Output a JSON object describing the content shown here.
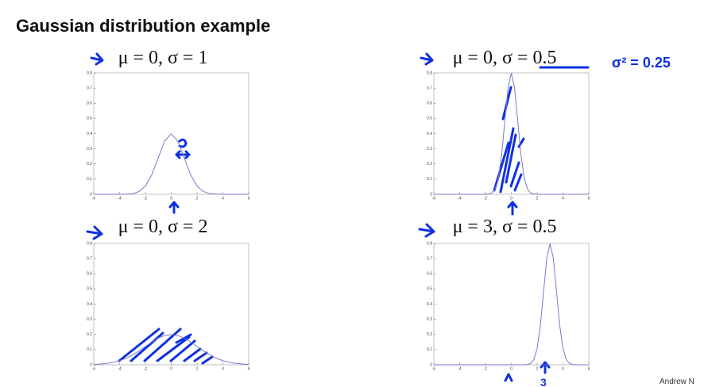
{
  "title": "Gaussian distribution example",
  "footer": "Andrew N",
  "chart_data": [
    {
      "type": "line",
      "title": "μ = 0, σ = 1",
      "x": [
        -6,
        -5.5,
        -5,
        -4.5,
        -4,
        -3.5,
        -3,
        -2.5,
        -2,
        -1.5,
        -1,
        -0.5,
        0,
        0.5,
        1,
        1.5,
        2,
        2.5,
        3,
        3.5,
        4,
        4.5,
        5,
        5.5,
        6
      ],
      "values": [
        0,
        0,
        0,
        0,
        0,
        0.001,
        0.004,
        0.018,
        0.054,
        0.13,
        0.242,
        0.352,
        0.399,
        0.352,
        0.242,
        0.13,
        0.054,
        0.018,
        0.004,
        0.001,
        0,
        0,
        0,
        0,
        0
      ],
      "color": "#7a78cc",
      "xlim": [
        -6,
        6
      ],
      "xticks": [
        -6,
        -4,
        -2,
        0,
        2,
        4,
        6
      ],
      "ylim": [
        0,
        0.8
      ],
      "yticks": [
        0,
        0.1,
        0.2,
        0.3,
        0.4,
        0.5,
        0.6,
        0.7,
        0.8
      ]
    },
    {
      "type": "line",
      "title": "μ = 0, σ = 0.5",
      "annotation": "σ² = 0.25",
      "x": [
        -6,
        -4,
        -2,
        -1.75,
        -1.5,
        -1.25,
        -1,
        -0.75,
        -0.5,
        -0.25,
        0,
        0.25,
        0.5,
        0.75,
        1,
        1.25,
        1.5,
        1.75,
        2,
        4,
        6
      ],
      "values": [
        0,
        0,
        0,
        0.002,
        0.009,
        0.035,
        0.108,
        0.259,
        0.484,
        0.704,
        0.798,
        0.704,
        0.484,
        0.259,
        0.108,
        0.035,
        0.009,
        0.002,
        0,
        0,
        0
      ],
      "color": "#7a78cc",
      "xlim": [
        -6,
        6
      ],
      "xticks": [
        -6,
        -4,
        -2,
        0,
        2,
        4,
        6
      ],
      "ylim": [
        0,
        0.8
      ],
      "yticks": [
        0,
        0.1,
        0.2,
        0.3,
        0.4,
        0.5,
        0.6,
        0.7,
        0.8
      ]
    },
    {
      "type": "line",
      "title": "μ = 0, σ = 2",
      "x": [
        -6,
        -5.5,
        -5,
        -4.5,
        -4,
        -3.5,
        -3,
        -2.5,
        -2,
        -1.5,
        -1,
        -0.5,
        0,
        0.5,
        1,
        1.5,
        2,
        2.5,
        3,
        3.5,
        4,
        4.5,
        5,
        5.5,
        6
      ],
      "values": [
        0.002,
        0.005,
        0.009,
        0.016,
        0.027,
        0.043,
        0.065,
        0.091,
        0.121,
        0.151,
        0.176,
        0.193,
        0.199,
        0.193,
        0.176,
        0.151,
        0.121,
        0.091,
        0.065,
        0.043,
        0.027,
        0.016,
        0.009,
        0.005,
        0.002
      ],
      "color": "#7a78cc",
      "xlim": [
        -6,
        6
      ],
      "xticks": [
        -6,
        -4,
        -2,
        0,
        2,
        4,
        6
      ],
      "ylim": [
        0,
        0.8
      ],
      "yticks": [
        0,
        0.1,
        0.2,
        0.3,
        0.4,
        0.5,
        0.6,
        0.7,
        0.8
      ]
    },
    {
      "type": "line",
      "title": "μ = 3, σ = 0.5",
      "annotation": "3",
      "x": [
        -6,
        -4,
        -2,
        0,
        1,
        1.25,
        1.5,
        1.75,
        2,
        2.25,
        2.5,
        2.75,
        3,
        3.25,
        3.5,
        3.75,
        4,
        4.25,
        4.5,
        4.75,
        5,
        6
      ],
      "values": [
        0,
        0,
        0,
        0,
        0,
        0.002,
        0.009,
        0.035,
        0.108,
        0.259,
        0.484,
        0.704,
        0.798,
        0.704,
        0.484,
        0.259,
        0.108,
        0.035,
        0.009,
        0.002,
        0,
        0
      ],
      "color": "#7a78cc",
      "xlim": [
        -6,
        6
      ],
      "xticks": [
        -6,
        -4,
        -2,
        0,
        2,
        4,
        6
      ],
      "ylim": [
        0,
        0.8
      ],
      "yticks": [
        0,
        0.1,
        0.2,
        0.3,
        0.4,
        0.5,
        0.6,
        0.7,
        0.8
      ]
    }
  ]
}
